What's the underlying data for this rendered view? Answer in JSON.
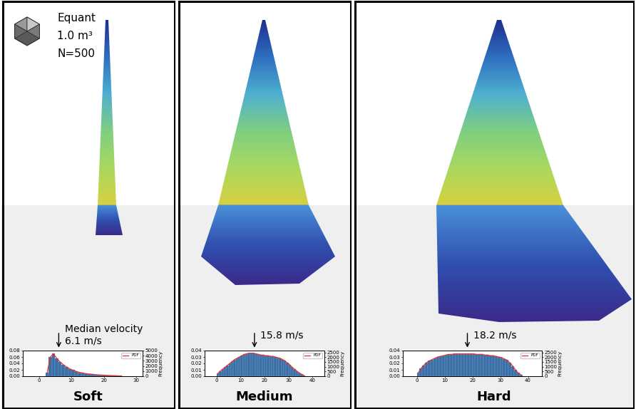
{
  "chart_data": [
    {
      "type": "histogram",
      "title": "Soft",
      "annotations": [
        {
          "text": "Equant"
        },
        {
          "text": "1.0 m³"
        },
        {
          "text": "N=500"
        },
        {
          "text": "Median velocity\n6.1 m/s",
          "x": 6.1
        }
      ],
      "bins": [
        2,
        3,
        4,
        5,
        6,
        7,
        8,
        9,
        10,
        11,
        12,
        13,
        14,
        15,
        16,
        17,
        18,
        19,
        20,
        21,
        22,
        23,
        24,
        25,
        26
      ],
      "series": [
        {
          "type": "bar",
          "axis": "y2",
          "color": "#3b6ea5",
          "values": [
            630,
            3750,
            4380,
            3440,
            2810,
            2250,
            1810,
            1440,
            1190,
            940,
            750,
            630,
            500,
            440,
            380,
            310,
            250,
            220,
            190,
            160,
            130,
            90,
            60,
            50
          ]
        },
        {
          "name": "PDF",
          "type": "line",
          "color": "#e8302a",
          "values": [
            0.01,
            0.06,
            0.07,
            0.055,
            0.045,
            0.036,
            0.029,
            0.023,
            0.019,
            0.015,
            0.012,
            0.01,
            0.008,
            0.007,
            0.006,
            0.005,
            0.004,
            0.0035,
            0.003,
            0.0025,
            0.002,
            0.0015,
            0.001,
            0.0008
          ]
        }
      ],
      "xlim": [
        -5,
        32
      ],
      "xticks": [
        0,
        10,
        20,
        30
      ],
      "ylim": [
        0,
        0.08
      ],
      "yticks": [
        {
          "value": 0,
          "label": "0.00"
        },
        {
          "value": 0.02,
          "label": "0.02"
        },
        {
          "value": 0.04,
          "label": "0.04"
        },
        {
          "value": 0.06,
          "label": "0.06"
        },
        {
          "value": 0.08,
          "label": "0.08"
        }
      ],
      "y2lim": [
        0,
        5000
      ],
      "y2ticks": [
        0,
        1000,
        2000,
        3000,
        4000,
        5000
      ],
      "y2_label": "Frequency",
      "legend": "upper right"
    },
    {
      "type": "histogram",
      "title": "Medium",
      "annotations": [
        {
          "text": "15.8 m/s",
          "x": 15.8
        }
      ],
      "bins": [
        0,
        1,
        2,
        3,
        4,
        5,
        6,
        7,
        8,
        9,
        10,
        11,
        12,
        13,
        14,
        15,
        16,
        17,
        18,
        19,
        20,
        21,
        22,
        23,
        24,
        25,
        26,
        27,
        28,
        29,
        30,
        31,
        32,
        33,
        34,
        35,
        36,
        37
      ],
      "series": [
        {
          "type": "bar",
          "axis": "y2",
          "color": "#3b6ea5",
          "values": [
            270,
            540,
            740,
            950,
            1150,
            1350,
            1550,
            1760,
            1890,
            2030,
            2160,
            2300,
            2360,
            2430,
            2430,
            2430,
            2360,
            2300,
            2230,
            2230,
            2160,
            2160,
            2090,
            2090,
            2030,
            1960,
            1890,
            1760,
            1620,
            1420,
            1220,
            950,
            740,
            540,
            340,
            200,
            70
          ]
        },
        {
          "name": "PDF",
          "type": "line",
          "color": "#e8302a",
          "values": [
            0.004,
            0.008,
            0.011,
            0.014,
            0.017,
            0.02,
            0.023,
            0.026,
            0.028,
            0.03,
            0.032,
            0.034,
            0.035,
            0.036,
            0.036,
            0.036,
            0.035,
            0.034,
            0.033,
            0.033,
            0.032,
            0.032,
            0.031,
            0.031,
            0.03,
            0.029,
            0.028,
            0.026,
            0.024,
            0.021,
            0.018,
            0.014,
            0.011,
            0.008,
            0.005,
            0.003,
            0.001
          ]
        }
      ],
      "xlim": [
        -5,
        45
      ],
      "xticks": [
        0,
        10,
        20,
        30,
        40
      ],
      "ylim": [
        0,
        0.04
      ],
      "yticks": [
        {
          "value": 0,
          "label": "0.00"
        },
        {
          "value": 0.01,
          "label": "0.01"
        },
        {
          "value": 0.02,
          "label": "0.02"
        },
        {
          "value": 0.03,
          "label": "0.03"
        },
        {
          "value": 0.04,
          "label": "0.04"
        }
      ],
      "y2lim": [
        0,
        2700
      ],
      "y2ticks": [
        0,
        500,
        1000,
        1500,
        2000,
        2500
      ],
      "y2_label": "Frequency",
      "legend": "upper right"
    },
    {
      "type": "histogram",
      "title": "Hard",
      "annotations": [
        {
          "text": "18.2 m/s",
          "x": 18.2
        }
      ],
      "bins": [
        0,
        1,
        2,
        3,
        4,
        5,
        6,
        7,
        8,
        9,
        10,
        11,
        12,
        13,
        14,
        15,
        16,
        17,
        18,
        19,
        20,
        21,
        22,
        23,
        24,
        25,
        26,
        27,
        28,
        29,
        30,
        31,
        32,
        33,
        34,
        35,
        36,
        37,
        38
      ],
      "series": [
        {
          "type": "bar",
          "axis": "y2",
          "color": "#3b6ea5",
          "values": [
            340,
            810,
            1150,
            1420,
            1620,
            1760,
            1890,
            2030,
            2090,
            2160,
            2230,
            2300,
            2300,
            2360,
            2360,
            2360,
            2360,
            2360,
            2360,
            2360,
            2360,
            2300,
            2300,
            2300,
            2230,
            2230,
            2160,
            2160,
            2090,
            2030,
            1960,
            1820,
            1690,
            1420,
            1080,
            680,
            340,
            140
          ]
        },
        {
          "name": "PDF",
          "type": "line",
          "color": "#e8302a",
          "values": [
            0.005,
            0.012,
            0.017,
            0.021,
            0.024,
            0.026,
            0.028,
            0.03,
            0.031,
            0.032,
            0.033,
            0.034,
            0.034,
            0.035,
            0.035,
            0.035,
            0.035,
            0.035,
            0.035,
            0.035,
            0.035,
            0.034,
            0.034,
            0.034,
            0.033,
            0.033,
            0.032,
            0.032,
            0.031,
            0.03,
            0.029,
            0.027,
            0.025,
            0.021,
            0.016,
            0.01,
            0.005,
            0.002
          ]
        }
      ],
      "xlim": [
        -5,
        45
      ],
      "xticks": [
        0,
        10,
        20,
        30,
        40
      ],
      "ylim": [
        0,
        0.04
      ],
      "yticks": [
        {
          "value": 0,
          "label": "0.00"
        },
        {
          "value": 0.01,
          "label": "0.01"
        },
        {
          "value": 0.02,
          "label": "0.02"
        },
        {
          "value": 0.03,
          "label": "0.03"
        },
        {
          "value": 0.04,
          "label": "0.04"
        }
      ],
      "y2lim": [
        0,
        2700
      ],
      "y2ticks": [
        0,
        500,
        1000,
        1500,
        2000,
        2500
      ],
      "y2_label": "Frequency",
      "legend": "upper right"
    }
  ]
}
